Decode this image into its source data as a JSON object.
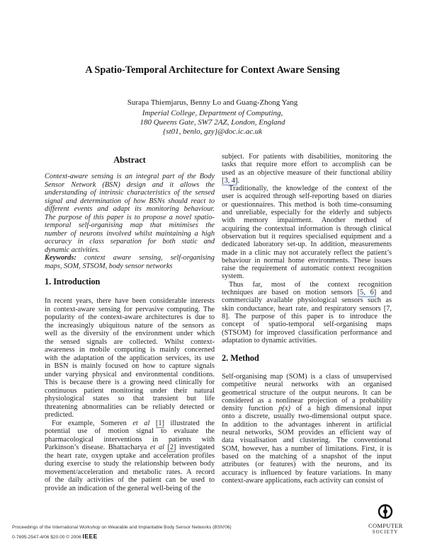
{
  "title": "A Spatio-Temporal Architecture for Context Aware Sensing",
  "authors": "Surapa Thiemjarus, Benny Lo and Guang-Zhong Yang",
  "affiliation": [
    "Imperial College, Department of Computing,",
    "180 Queens Gate, SW7 2AZ, London, England",
    "{st01, benlo, gzy}@doc.ic.ac.uk"
  ],
  "abstract": {
    "heading": "Abstract",
    "lines": [
      "Context-aware sensing is an integral part of the Body",
      "Sensor Network (BSN) design and it allows the",
      "understanding of intrinsic characteristics of the sensed",
      "signal and determination of  how BSNs should react to",
      "different events and adapt its monitoring behaviour.",
      "The purpose of this paper is to propose a novel spatio-",
      "temporal self-organising map that minimises the",
      "number of neurons involved whilst maintaining a high",
      "accuracy in class separation for both static and",
      "dynamic activities."
    ],
    "keywords_label": "Keywords:",
    "keywords_lines": [
      "context aware sensing, self-organising",
      "maps, SOM, STSOM, body sensor networks"
    ]
  },
  "introduction": {
    "heading": "1. Introduction",
    "paragraphs": [
      [
        "In recent years, there have been considerable interests",
        "in context-aware sensing for pervasive computing. The",
        "popularity of the context-aware architectures is due to",
        "the increasingly ubiquitous nature of the sensors as",
        "well as the diversity of the environment under which",
        "the sensed signals are collected. Whilst context-",
        "awareness in mobile computing is mainly concerned",
        "with the adaptation of the application services, its use",
        "in BSN is mainly focused on how to capture signals",
        "under varying physical and environmental conditions.",
        "This is because there is a growing need clinically for",
        "continuous patient monitoring under their natural",
        "physiological states so that transient but life",
        "threatening abnormalities can be reliably detected or",
        "predicted."
      ],
      [
        "For example, Someren et al [1] illustrated the",
        "potential use of motion signal to evaluate the",
        "pharmacological interventions in patients with",
        "Parkinson’s disease. Bhattacharya et al [2] investigated",
        "the heart rate, oxygen uptake and acceleration profiles",
        "during exercise to study the relationship between body",
        "movement/acceleration and metabolic rates. A record",
        "of the daily activities of the patient can be used to",
        "provide an indication of the general well-being of the"
      ]
    ]
  },
  "right_column": {
    "paragraphs": [
      [
        "subject. For patients with disabilities, monitoring the",
        "tasks that require more effort to accomplish can be",
        "used as an objective measure of their functional ability",
        "[3, 4]."
      ],
      [
        "Traditionally, the knowledge of the context of the",
        "user is acquired through self-reporting based on diaries",
        "or questionnaires. This method is both time-consuming",
        "and unreliable, especially for the elderly and subjects",
        "with memory impairment. Another method of",
        "acquiring the contextual information is through clinical",
        "observation but it requires specialised equipment and a",
        "dedicated laboratory set-up. In addition, measurements",
        "made in a clinic may not accurately reflect the patient’s",
        "behaviour in normal home environments. These issues",
        "raise the requirement of automatic context recognition",
        "system."
      ],
      [
        "Thus far, most of the context recognition",
        "techniques are based on motion sensors [5, 6] and",
        "commercially available physiological sensors such as",
        "skin conductance, heart rate, and respiratory sensors [7,",
        "8]. The purpose of this paper is to introduce the",
        "concept of spatio-temporal self-organising maps",
        "(STSOM) for improved classification performance and",
        "adaptation to dynamic activities."
      ]
    ]
  },
  "method": {
    "heading": "2. Method",
    "lines": [
      "Self-organising map (SOM) is a class of unsupervised",
      "competitive neural networks with an organised",
      "geometrical structure of the output neurons. It can be",
      "considered as a nonlinear projection of a probability",
      "density function p(x) of a high dimensional input",
      "onto a discrete, usually two-dimensional output space.",
      "In addition to the advantages inherent in artificial",
      "neural networks, SOM provides an efficient way of",
      "data visualisation and clustering. The conventional",
      "SOM, however, has a number of limitations. First, it is",
      "based on the matching of a snapshot of the input",
      "attributes (or features) with the neurons, and its",
      "accuracy is influenced by feature variations. In many",
      "context-aware applications, each activity can consist of"
    ]
  },
  "footer": {
    "proceedings": "Proceedings of the International Workshop on Wearable and Implantable Body Sensor Networks (BSN'06)",
    "isbn": "0-7695-2547-4/06 $20.00 © 2006",
    "publisher": "IEEE"
  },
  "logo": {
    "line1": "COMPUTER",
    "line2": "SOCIETY",
    "icon": "ieee-computer-society-emblem"
  },
  "colors": {
    "link_underline": "#5b8ed6",
    "text": "#222222"
  }
}
